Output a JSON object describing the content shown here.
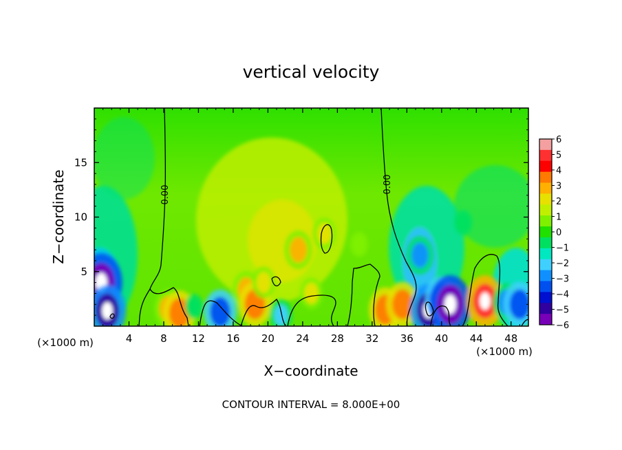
{
  "chart_data": {
    "type": "heatmap",
    "title": "vertical velocity",
    "xlabel": "X−coordinate",
    "ylabel": "Z−coordinate",
    "x_unit": "(×1000 m)",
    "x_unit_right": "(×1000 m)",
    "footer": "CONTOUR INTERVAL = 8.000E+00",
    "xlim": [
      0,
      50
    ],
    "ylim": [
      0,
      20
    ],
    "x_ticks": [
      4,
      8,
      12,
      16,
      20,
      24,
      28,
      32,
      36,
      40,
      44,
      48
    ],
    "y_ticks": [
      5,
      10,
      15
    ],
    "contour_label": "0.00",
    "contour_level": 0,
    "colorbar": {
      "ticks": [
        "6",
        "5",
        "4",
        "3",
        "2",
        "1",
        "0",
        "−1",
        "−2",
        "−3",
        "−4",
        "−5",
        "−6"
      ],
      "range": [
        -6,
        6
      ],
      "colors": [
        "#f4a0a0",
        "#ff3030",
        "#ff0000",
        "#ff7a00",
        "#ffb000",
        "#e8e000",
        "#c0f000",
        "#7ef000",
        "#20e000",
        "#00e060",
        "#00e8c0",
        "#40d0ff",
        "#1090ff",
        "#0050f0",
        "#0010d0",
        "#3000a0",
        "#7800b8"
      ]
    },
    "features": [
      {
        "x": 0.8,
        "z": 4.0,
        "value": -6
      },
      {
        "x": 1.5,
        "z": 1.4,
        "value": -5
      },
      {
        "x": 8.5,
        "z": 1.6,
        "value": 3
      },
      {
        "x": 9.8,
        "z": 1.2,
        "value": 4
      },
      {
        "x": 11.5,
        "z": 1.8,
        "value": -1
      },
      {
        "x": 14.5,
        "z": 1.3,
        "value": -4
      },
      {
        "x": 17.5,
        "z": 3.3,
        "value": 3
      },
      {
        "x": 18.5,
        "z": 2.0,
        "value": 4
      },
      {
        "x": 19.5,
        "z": 4.0,
        "value": 2
      },
      {
        "x": 21.5,
        "z": 1.0,
        "value": -2
      },
      {
        "x": 23.5,
        "z": 7.0,
        "value": 3
      },
      {
        "x": 25.0,
        "z": 3.0,
        "value": 2
      },
      {
        "x": 26.5,
        "z": 8.5,
        "value": 2
      },
      {
        "x": 30.5,
        "z": 7.5,
        "value": 1
      },
      {
        "x": 33.5,
        "z": 1.5,
        "value": 4
      },
      {
        "x": 35.5,
        "z": 2.0,
        "value": 4
      },
      {
        "x": 37.5,
        "z": 6.5,
        "value": -3
      },
      {
        "x": 38.5,
        "z": 1.5,
        "value": -5
      },
      {
        "x": 40.0,
        "z": 2.5,
        "value": -4
      },
      {
        "x": 41.0,
        "z": 2.0,
        "value": -6
      },
      {
        "x": 45.0,
        "z": 2.3,
        "value": 5
      },
      {
        "x": 47.5,
        "z": 2.2,
        "value": -3
      },
      {
        "x": 49.0,
        "z": 2.0,
        "value": -4
      },
      {
        "x": 42.5,
        "z": 9.5,
        "value": -1
      }
    ]
  }
}
